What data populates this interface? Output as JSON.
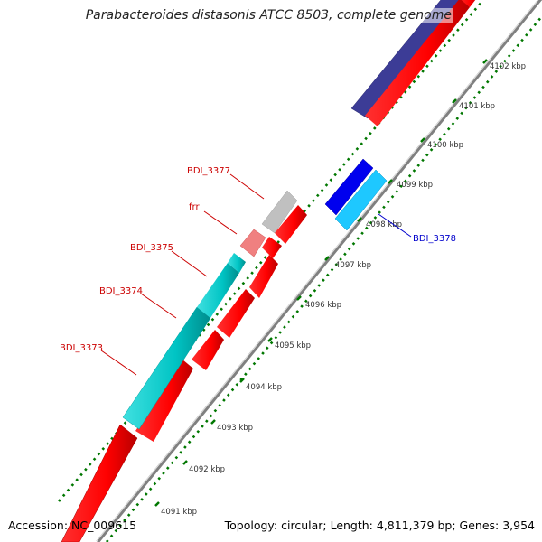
{
  "title": "Parabacteroides distasonis ATCC 8503, complete genome",
  "footer": {
    "accession": "Accession: NC_009615",
    "summary": "Topology: circular; Length: 4,811,379 bp; Genes: 3,954"
  },
  "ticks": [
    "4091 kbp",
    "4092 kbp",
    "4093 kbp",
    "4094 kbp",
    "4095 kbp",
    "4096 kbp",
    "4097 kbp",
    "4098 kbp",
    "4099 kbp",
    "4100 kbp",
    "4101 kbp",
    "4102 kbp"
  ],
  "gene_labels": {
    "bdi_3377": "BDI_3377",
    "frr": "frr",
    "bdi_3375": "BDI_3375",
    "bdi_3374": "BDI_3374",
    "bdi_3373": "BDI_3373",
    "bdi_3378": "BDI_3378"
  },
  "colors": {
    "cds": "#ff0000",
    "gene_forward": "#00c8c8",
    "gene_light": "#f08080",
    "gene_grey": "#c0c0c0",
    "gene_navy": "#3c3c96",
    "gene_blue": "#0000ee",
    "gene_sky": "#1ec8ff",
    "backbone": "#808080",
    "dots": "#007700",
    "label_red": "#cc0000",
    "label_blue": "#0000cc"
  }
}
